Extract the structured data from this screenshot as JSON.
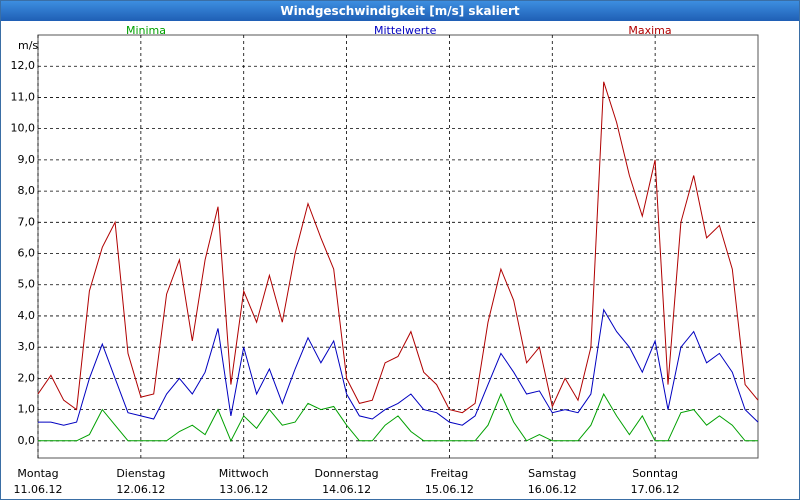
{
  "chart_data": {
    "type": "line",
    "title": "Windgeschwindigkeit [m/s] skaliert",
    "y_unit": "m/s",
    "x": [
      0,
      3,
      6,
      9,
      12,
      15,
      18,
      21,
      24,
      27,
      30,
      33,
      36,
      39,
      42,
      45,
      48,
      51,
      54,
      57,
      60,
      63,
      66,
      69,
      72,
      75,
      78,
      81,
      84,
      87,
      90,
      93,
      96,
      99,
      102,
      105,
      108,
      111,
      114,
      117,
      120,
      123,
      126,
      129,
      132,
      135,
      138,
      141,
      144,
      147,
      150,
      153,
      156,
      159,
      162,
      165,
      168
    ],
    "xlim": [
      0,
      168
    ],
    "xticks": [
      {
        "value": 0,
        "label": "Montag"
      },
      {
        "value": 24,
        "label": "Dienstag"
      },
      {
        "value": 48,
        "label": "Mittwoch"
      },
      {
        "value": 72,
        "label": "Donnerstag"
      },
      {
        "value": 96,
        "label": "Freitag"
      },
      {
        "value": 120,
        "label": "Samstag"
      },
      {
        "value": 144,
        "label": "Sonntag"
      }
    ],
    "xtick_dates": [
      "11.06.12",
      "12.06.12",
      "13.06.12",
      "14.06.12",
      "15.06.12",
      "16.06.12",
      "17.06.12"
    ],
    "ylim": [
      -0.55,
      13.0
    ],
    "yticks": [
      {
        "value": 0,
        "label": "0,0"
      },
      {
        "value": 1,
        "label": "1,0"
      },
      {
        "value": 2,
        "label": "2,0"
      },
      {
        "value": 3,
        "label": "3,0"
      },
      {
        "value": 4,
        "label": "4,0"
      },
      {
        "value": 5,
        "label": "5,0"
      },
      {
        "value": 6,
        "label": "6,0"
      },
      {
        "value": 7,
        "label": "7,0"
      },
      {
        "value": 8,
        "label": "8,0"
      },
      {
        "value": 9,
        "label": "9,0"
      },
      {
        "value": 10,
        "label": "10,0"
      },
      {
        "value": 11,
        "label": "11,0"
      },
      {
        "value": 12,
        "label": "12,0"
      }
    ],
    "grid": true,
    "series": [
      {
        "name": "Minima",
        "color": "#00a000",
        "values": [
          0.0,
          0.0,
          0.0,
          0.0,
          0.2,
          1.0,
          0.5,
          0.0,
          0.0,
          0.0,
          0.0,
          0.3,
          0.5,
          0.2,
          1.0,
          0.0,
          0.8,
          0.4,
          1.0,
          0.5,
          0.6,
          1.2,
          1.0,
          1.1,
          0.5,
          0.0,
          0.0,
          0.5,
          0.8,
          0.3,
          0.0,
          0.0,
          0.0,
          0.0,
          0.0,
          0.5,
          1.5,
          0.6,
          0.0,
          0.2,
          0.0,
          0.0,
          0.0,
          0.5,
          1.5,
          0.8,
          0.2,
          0.8,
          0.0,
          0.0,
          0.9,
          1.0,
          0.5,
          0.8,
          0.5,
          0.0,
          0.0
        ]
      },
      {
        "name": "Mittelwerte",
        "color": "#0000c0",
        "values": [
          0.6,
          0.6,
          0.5,
          0.6,
          2.0,
          3.1,
          2.0,
          0.9,
          0.8,
          0.7,
          1.5,
          2.0,
          1.5,
          2.2,
          3.6,
          0.8,
          3.0,
          1.5,
          2.3,
          1.2,
          2.3,
          3.3,
          2.5,
          3.2,
          1.5,
          0.8,
          0.7,
          1.0,
          1.2,
          1.5,
          1.0,
          0.9,
          0.6,
          0.5,
          0.8,
          1.8,
          2.8,
          2.2,
          1.5,
          1.6,
          0.9,
          1.0,
          0.9,
          1.5,
          4.2,
          3.5,
          3.0,
          2.2,
          3.2,
          1.0,
          3.0,
          3.5,
          2.5,
          2.8,
          2.2,
          1.0,
          0.6
        ]
      },
      {
        "name": "Maxima",
        "color": "#b00000",
        "values": [
          1.5,
          2.1,
          1.3,
          1.0,
          4.8,
          6.2,
          7.0,
          2.8,
          1.4,
          1.5,
          4.7,
          5.8,
          3.2,
          5.8,
          7.5,
          1.8,
          4.8,
          3.8,
          5.3,
          3.8,
          6.0,
          7.6,
          6.5,
          5.5,
          2.0,
          1.2,
          1.3,
          2.5,
          2.7,
          3.5,
          2.2,
          1.8,
          1.0,
          0.9,
          1.2,
          3.8,
          5.5,
          4.5,
          2.5,
          3.0,
          1.1,
          2.0,
          1.3,
          3.0,
          11.5,
          10.2,
          8.5,
          7.2,
          9.0,
          1.8,
          7.0,
          8.5,
          6.5,
          6.9,
          5.5,
          1.8,
          1.3
        ]
      }
    ]
  }
}
